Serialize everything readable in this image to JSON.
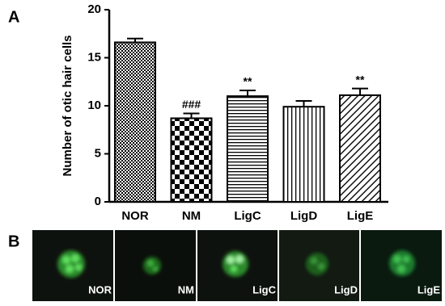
{
  "panel_labels": [
    "A",
    "B"
  ],
  "chart_data": {
    "type": "bar",
    "ylabel": "Number of otic hair cells",
    "categories": [
      "NOR",
      "NM",
      "LigC",
      "LigD",
      "LigE"
    ],
    "values": [
      16.6,
      8.7,
      11.0,
      9.9,
      11.1
    ],
    "errors": [
      0.4,
      0.5,
      0.6,
      0.6,
      0.7
    ],
    "bar_annotations": [
      null,
      "###",
      "**",
      null,
      "**"
    ],
    "ylim": [
      0,
      20
    ],
    "yticks": [
      0,
      5,
      10,
      15,
      20
    ],
    "color": "#000000"
  },
  "images": [
    {
      "label": "NOR"
    },
    {
      "label": "NM"
    },
    {
      "label": "LigC"
    },
    {
      "label": "LigD"
    },
    {
      "label": "LigE"
    }
  ]
}
